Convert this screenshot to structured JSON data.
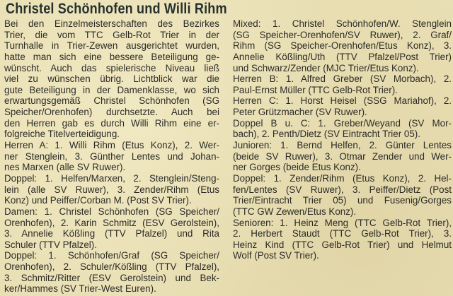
{
  "title": "Christel Schönhofen und Willi Rihm",
  "left_column": [
    {
      "text": "Bei den Einzelmeisterschaften des Bezirkes",
      "end": false
    },
    {
      "text": "Trier, die vom TTC Gelb-Rot Trier in der",
      "end": false
    },
    {
      "text": "Turnhalle in Trier-Zewen ausgerichtet wurden,",
      "end": false
    },
    {
      "text": "hatte man sich eine bessere Beteiligung ge-",
      "end": false
    },
    {
      "text": "wünscht. Auch das spielerische Niveau ließ",
      "end": false
    },
    {
      "text": "viel zu wünschen übrig. Lichtblick war die",
      "end": false
    },
    {
      "text": "gute Beteiligung in der Damenklasse, wo sich",
      "end": false
    },
    {
      "text": "erwartungsgemäß Christel Schönhofen (SG",
      "end": false
    },
    {
      "text": "Speicher/Orenhofen) durchsetzte. Auch bei",
      "end": false
    },
    {
      "text": "den Herren gab es durch Willi Rihm eine er-",
      "end": false
    },
    {
      "text": "folgreiche Titelverteidigung.",
      "end": true
    },
    {
      "text": "Herren A: 1. Willi Rihm (Etus Konz), 2. Wer-",
      "end": false
    },
    {
      "text": "ner Stenglein, 3. Günther Lentes und Johan-",
      "end": false
    },
    {
      "text": "nes Marxen (alle SV Ruwer).",
      "end": true
    },
    {
      "text": "Doppel: 1. Helfen/Marxen, 2. Stenglein/Steng-",
      "end": false
    },
    {
      "text": "lein (alle SV Ruwer), 3. Zender/Rihm (Etus",
      "end": false
    },
    {
      "text": "Konz) und Peiffer/Corban M. (Post SV Trier).",
      "end": true
    },
    {
      "text": "Damen: 1. Christel Schönhofen (SG Speicher/",
      "end": false
    },
    {
      "text": "Orenhofen), 2. Karin Schmitz (ESV Gerolstein),",
      "end": false
    },
    {
      "text": "3. Annelie Kößling (TTV Pfalzel) und Rita",
      "end": false
    },
    {
      "text": "Schuler (TTV Pfalzel).",
      "end": true
    },
    {
      "text": "Doppel: 1. Schönhofen/Graf (SG Speicher/",
      "end": false
    },
    {
      "text": "Orenhofen), 2. Schuler/Kößling (TTV Pfalzel),",
      "end": false
    },
    {
      "text": "3. Schmitz/Ritter (ESV Gerolstein) und Bek-",
      "end": false
    },
    {
      "text": "ker/Hammes (SV Trier-West Euren).",
      "end": true
    }
  ],
  "right_column": [
    {
      "text": "Mixed: 1. Christel Schönhofen/W. Stenglein",
      "end": false
    },
    {
      "text": "(SG Speicher-Orenhofen/SV Ruwer), 2. Graf/",
      "end": false
    },
    {
      "text": "Rihm (SG Speicher-Orenhofen/Etus Konz), 3.",
      "end": false
    },
    {
      "text": "Annelie Kößling/Uth (TTV Pfalzel/Post Trier)",
      "end": false
    },
    {
      "text": "und Schwarz/Zender (MJC Trier/Etus Konz).",
      "end": true
    },
    {
      "text": "Herren B: 1. Alfred Greber (SV Morbach), 2.",
      "end": false
    },
    {
      "text": "Paul-Ernst Müller (TTC Gelb-Rot Trier).",
      "end": true
    },
    {
      "text": "Herren C: 1. Horst Heisel (SSG Mariahof), 2.",
      "end": false
    },
    {
      "text": "Peter Grützmacher (SV Ruwer).",
      "end": true
    },
    {
      "text": "Doppel B u. C: 1. Greber/Weyand (SV Mor-",
      "end": false
    },
    {
      "text": "bach), 2. Penth/Dietz (SV Eintracht Trier 05).",
      "end": true
    },
    {
      "text": "Junioren: 1. Bernd Helfen, 2. Günter Lentes",
      "end": false
    },
    {
      "text": "(beide SV Ruwer), 3. Otmar Zender und Wer-",
      "end": false
    },
    {
      "text": "ner Gorges (beide Etus Konz).",
      "end": true
    },
    {
      "text": "Doppel: 1. Zender/Rihm (Etus Konz), 2. Hel-",
      "end": false
    },
    {
      "text": "fen/Lentes (SV Ruwer), 3. Peiffer/Dietz (Post",
      "end": false
    },
    {
      "text": "Trier/Eintracht Trier 05) und Fusenig/Gorges",
      "end": false
    },
    {
      "text": "(TTC GW Zewen/Etus Konz).",
      "end": true
    },
    {
      "text": "Senioren: 1. Heinz Meng (TTC Gelb-Rot Trier),",
      "end": false
    },
    {
      "text": "2. Herbert Staudt (TTC Gelb-Rot Trier), 3.",
      "end": false
    },
    {
      "text": "Heinz Kind (TTC Gelb-Rot Trier) und Helmut",
      "end": false
    },
    {
      "text": "Wolf (Post SV Trier).",
      "end": true
    }
  ]
}
